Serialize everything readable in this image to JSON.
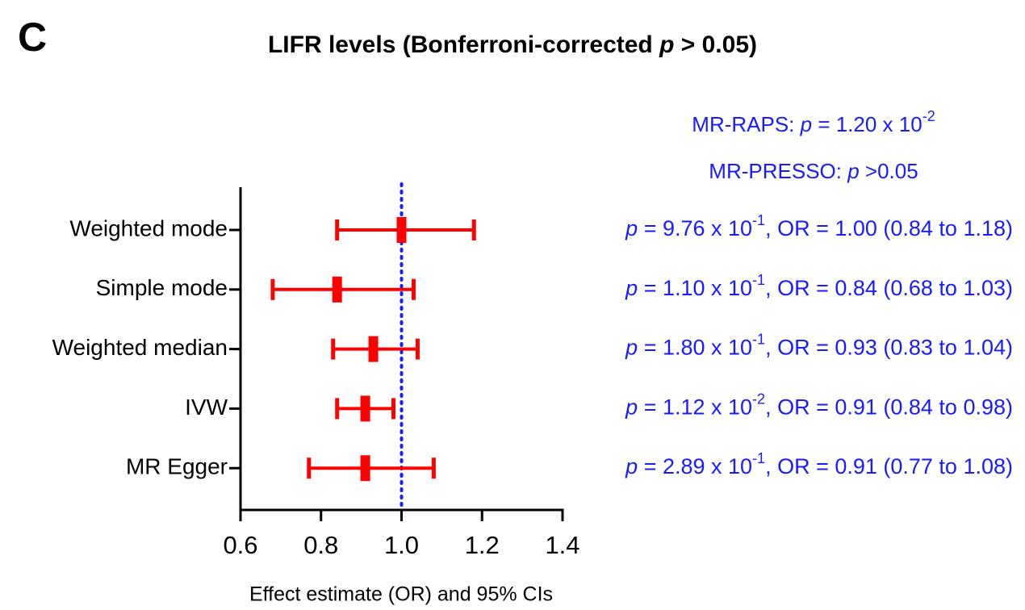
{
  "panel_label": "C",
  "chart_data": {
    "type": "forest",
    "title": {
      "before": "LIFR levels (Bonferroni-corrected ",
      "italic": "p",
      "after": " > 0.05)"
    },
    "header_annotations": [
      {
        "text": "MR-RAPS: ",
        "italic": "p",
        "mid": " = 1.20 x 10",
        "exp": "-2"
      },
      {
        "text": "MR-PRESSO: ",
        "italic": "p",
        "mid": " >0.05"
      }
    ],
    "categories": [
      "Weighted mode",
      "Simple mode",
      "Weighted median",
      "IVW",
      "MR Egger"
    ],
    "values": [
      1.0,
      0.84,
      0.93,
      0.91,
      0.91
    ],
    "lower": [
      0.84,
      0.68,
      0.83,
      0.84,
      0.77
    ],
    "upper": [
      1.18,
      1.03,
      1.04,
      0.98,
      1.08
    ],
    "value_labels": [
      {
        "italic": "p",
        "mid": " = 9.76 x 10",
        "exp": "-1",
        "tail": ", OR = 1.00 (0.84 to 1.18)"
      },
      {
        "italic": "p",
        "mid": " = 1.10 x 10",
        "exp": "-1",
        "tail": ", OR = 0.84 (0.68 to 1.03)"
      },
      {
        "italic": "p",
        "mid": " = 1.80 x 10",
        "exp": "-1",
        "tail": ", OR = 0.93 (0.83 to 1.04)"
      },
      {
        "italic": "p",
        "mid": " = 1.12 x 10",
        "exp": "-2",
        "tail": ", OR = 0.91 (0.84 to 0.98)"
      },
      {
        "italic": "p",
        "mid": " = 2.89 x 10",
        "exp": "-1",
        "tail": ", OR = 0.91 (0.77 to 1.08)"
      }
    ],
    "xlabel": "Effect estimate (OR) and 95% CIs",
    "xlim": [
      0.6,
      1.4
    ],
    "xticks": [
      0.6,
      0.8,
      {
        "value": 1,
        "label": "1.0"
      },
      1.2,
      1.4
    ],
    "reference_line": 1,
    "color": "#ff0000",
    "annotation_color": "#1a1aff",
    "reference_color": "#1a1aff"
  }
}
